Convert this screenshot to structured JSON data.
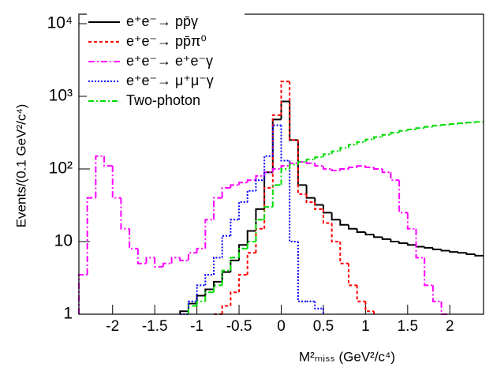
{
  "chart_data": {
    "type": "histogram",
    "x_label": "M²ₘᵢₛₛ (GeV²/c⁴)",
    "y_label": "Events/(0.1 GeV²/c⁴)",
    "log_y": true,
    "xlim": [
      -2.4,
      2.4
    ],
    "ylim": [
      1,
      13500
    ],
    "xticks": [
      -2,
      -1.5,
      -1,
      -0.5,
      0,
      0.5,
      1,
      1.5,
      2
    ],
    "yticks": [
      1,
      10,
      {
        "value": 100,
        "label": "10²"
      },
      {
        "value": 1000,
        "label": "10³"
      },
      {
        "value": 10000,
        "label": "10⁴"
      }
    ],
    "bins": [
      -2.4,
      -2.3,
      -2.2,
      -2.1,
      -2.0,
      -1.9,
      -1.8,
      -1.7,
      -1.6,
      -1.5,
      -1.4,
      -1.3,
      -1.2,
      -1.1,
      -1.0,
      -0.9,
      -0.8,
      -0.7,
      -0.6,
      -0.5,
      -0.4,
      -0.3,
      -0.2,
      -0.1,
      0,
      0.1,
      0.2,
      0.3,
      0.4,
      0.5,
      0.6,
      0.7,
      0.8,
      0.9,
      1.0,
      1.1,
      1.2,
      1.3,
      1.4,
      1.5,
      1.6,
      1.7,
      1.8,
      1.9,
      2.0,
      2.1,
      2.2,
      2.3,
      2.4
    ],
    "legend": "upper left",
    "series": [
      {
        "name": "e⁺e⁻→ pp̄γ",
        "color": "#000000",
        "dash": "none",
        "values": [
          null,
          null,
          null,
          null,
          null,
          null,
          null,
          null,
          null,
          null,
          null,
          null,
          1.1,
          1.4,
          1.8,
          2.2,
          2.8,
          3.8,
          5.5,
          9,
          14,
          28,
          90,
          480,
          850,
          250,
          60,
          40,
          32,
          25,
          20,
          17,
          15,
          13.5,
          12.5,
          11.5,
          10.8,
          10,
          9.5,
          9,
          8.5,
          8.2,
          7.8,
          7.5,
          7.2,
          7,
          6.7,
          6.4
        ]
      },
      {
        "name": "e⁺e⁻→ pp̄π⁰",
        "color": "#ff0000",
        "dash": "4,3",
        "values": [
          null,
          null,
          null,
          null,
          null,
          null,
          null,
          null,
          null,
          null,
          null,
          null,
          null,
          null,
          null,
          null,
          1,
          1.3,
          2,
          3.5,
          7,
          15,
          55,
          550,
          1600,
          250,
          45,
          35,
          28,
          18,
          10,
          5,
          2.5,
          1.5,
          1.1,
          null,
          null,
          null,
          null,
          null,
          null,
          null,
          null,
          null,
          null,
          null,
          null,
          null
        ]
      },
      {
        "name": "e⁺e⁻→ e⁺e⁻γ",
        "color": "#ff00ff",
        "dash": "8,3,2,3",
        "values": [
          3.5,
          40,
          150,
          110,
          40,
          15,
          8,
          5,
          6,
          4.5,
          5,
          6,
          5.5,
          7,
          8,
          20,
          40,
          55,
          60,
          65,
          70,
          80,
          90,
          100,
          110,
          120,
          125,
          120,
          110,
          100,
          95,
          100,
          105,
          110,
          105,
          100,
          90,
          70,
          25,
          15,
          6,
          2.5,
          1.5,
          1,
          null,
          null,
          null,
          null
        ]
      },
      {
        "name": "e⁺e⁻→ μ⁺μ⁻γ",
        "color": "#0000ff",
        "dash": "2,2",
        "values": [
          null,
          null,
          null,
          null,
          null,
          null,
          null,
          null,
          null,
          null,
          null,
          null,
          1,
          1.5,
          2.5,
          3.5,
          6,
          12,
          20,
          35,
          50,
          70,
          150,
          400,
          130,
          10,
          1.5,
          1.5,
          1.2,
          null,
          null,
          null,
          null,
          null,
          null,
          null,
          null,
          null,
          null,
          null,
          null,
          null,
          null,
          null,
          null,
          null,
          null,
          null
        ]
      },
      {
        "name": "Two-photon",
        "color": "#00dd00",
        "dash": "7,3,2,3",
        "values": [
          null,
          null,
          null,
          null,
          null,
          null,
          null,
          null,
          null,
          null,
          null,
          null,
          null,
          1.3,
          1.5,
          2,
          2.5,
          4,
          6,
          8,
          10,
          20,
          30,
          60,
          100,
          115,
          125,
          135,
          145,
          160,
          175,
          195,
          215,
          235,
          255,
          275,
          295,
          315,
          335,
          350,
          365,
          380,
          395,
          405,
          415,
          425,
          435,
          445
        ]
      }
    ]
  }
}
